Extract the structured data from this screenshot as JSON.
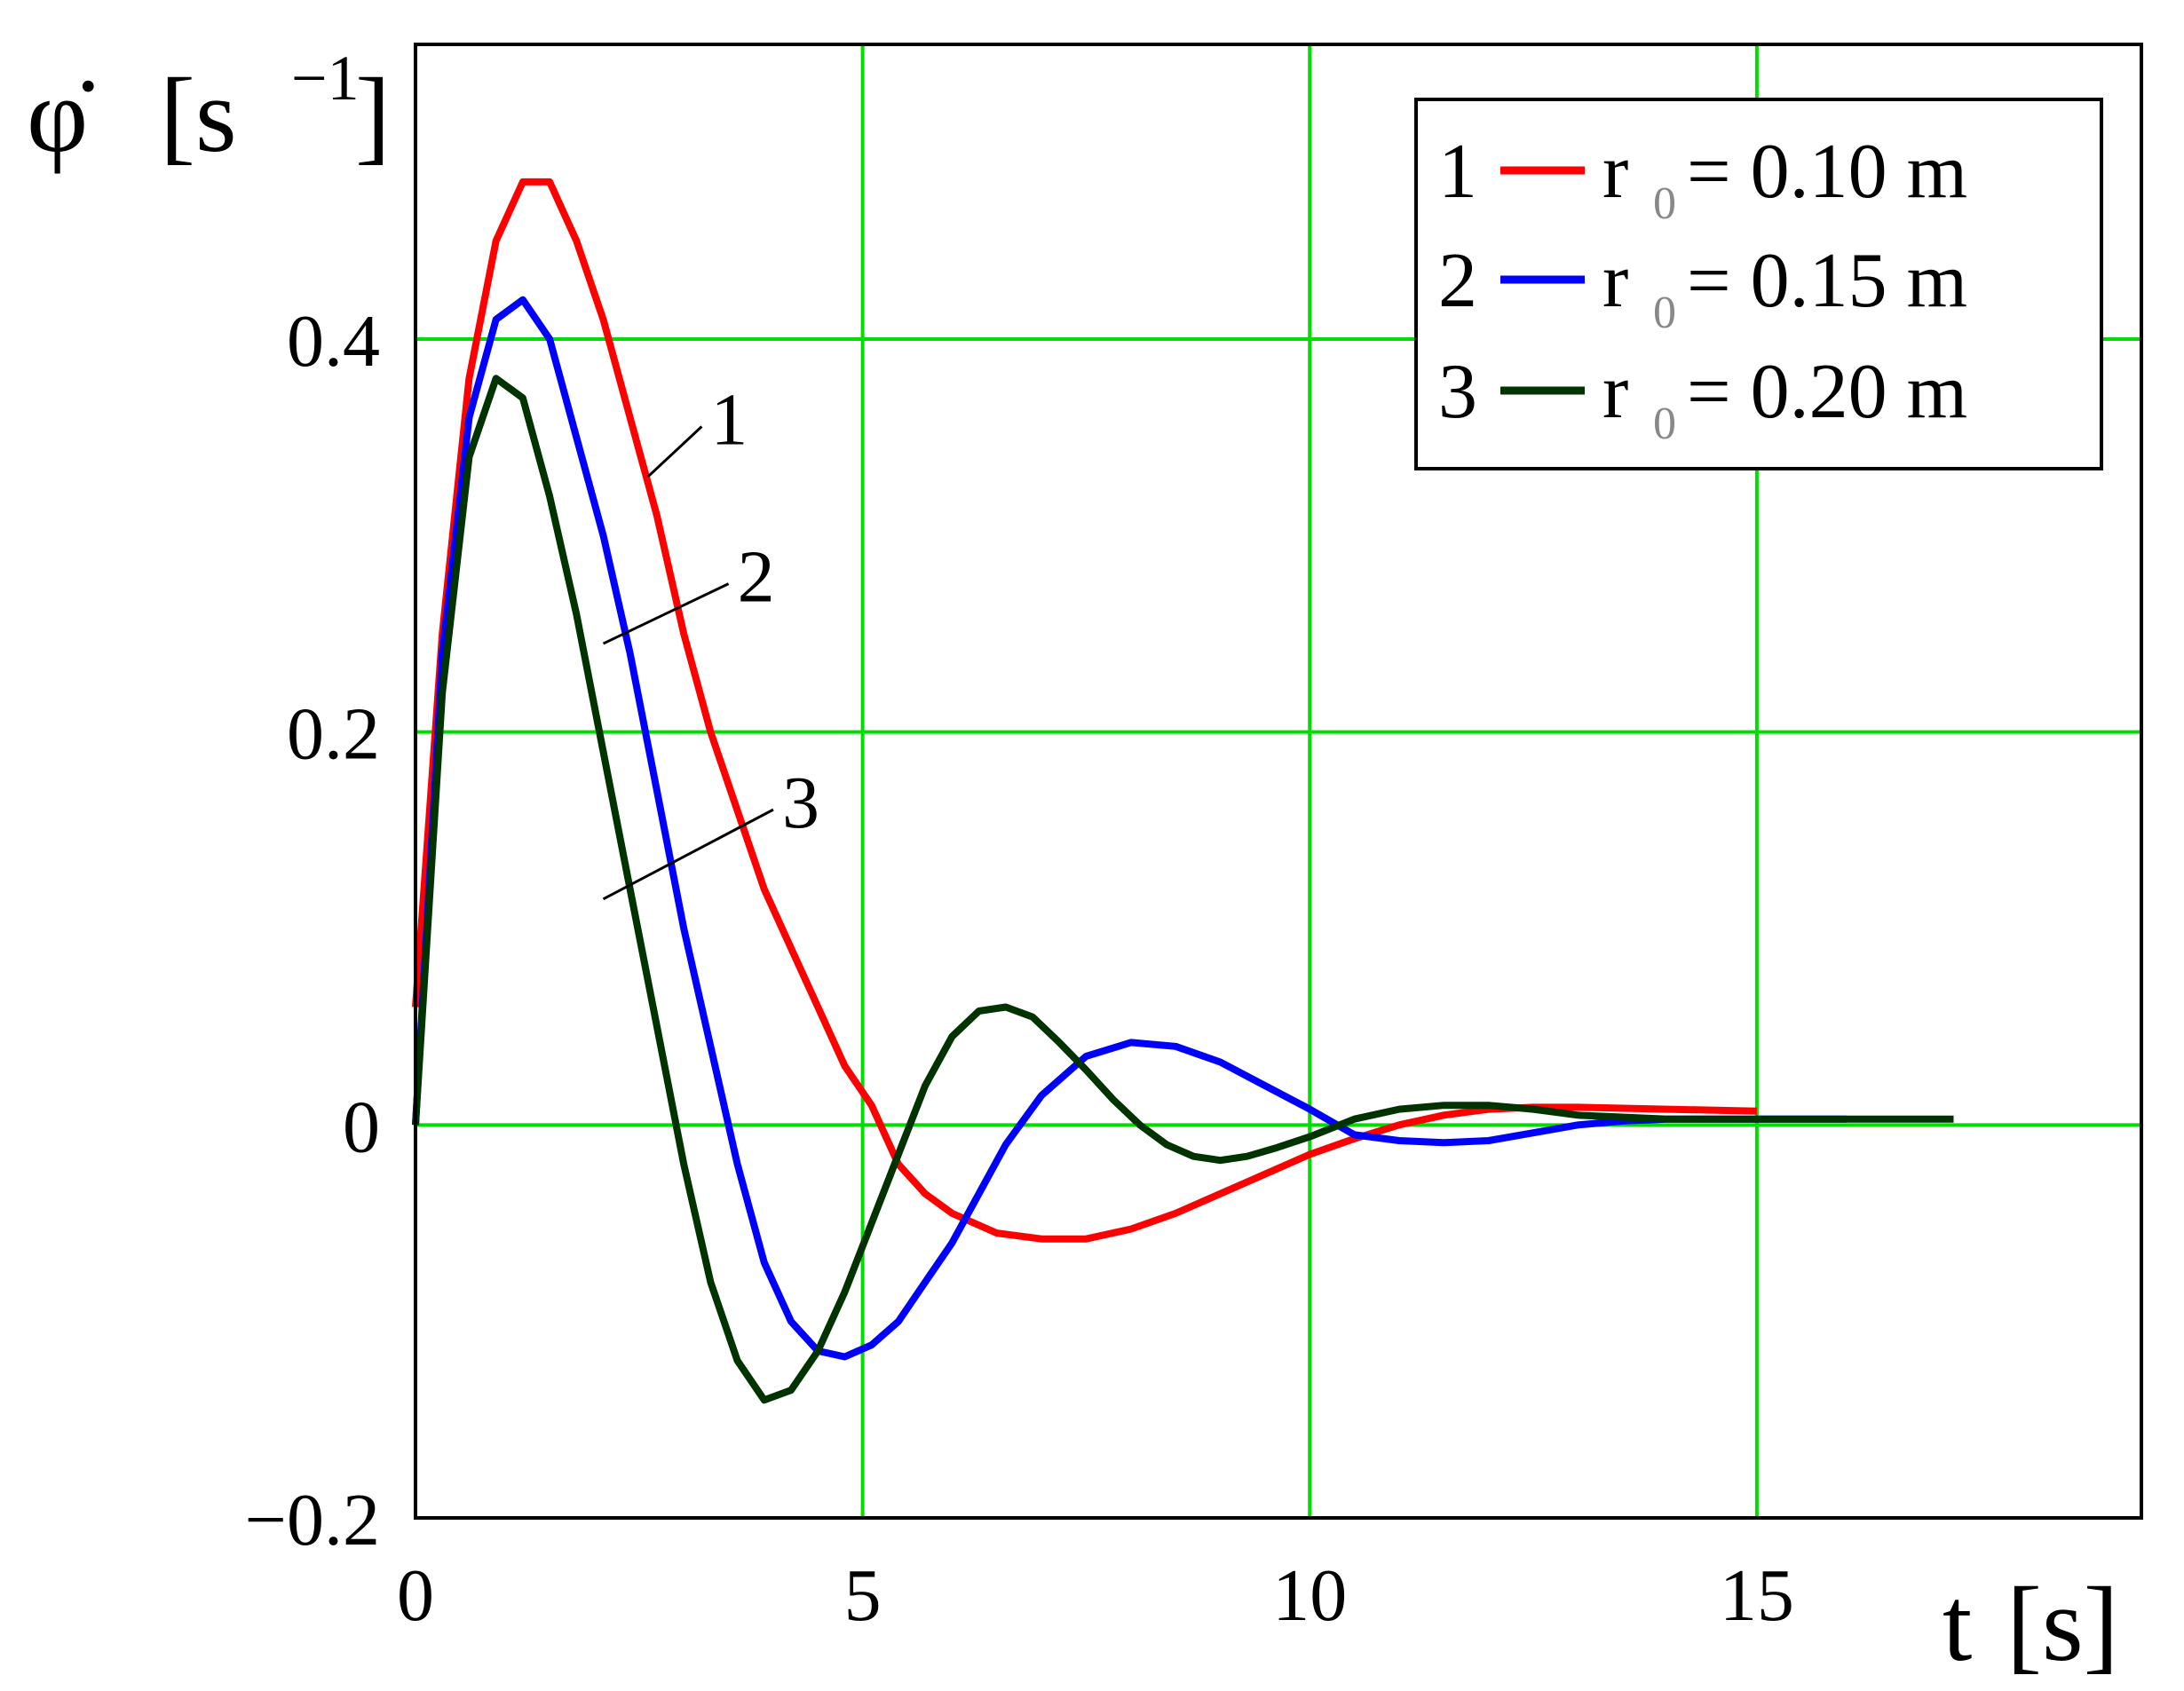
{
  "chart_data": {
    "type": "line",
    "ylabel": {
      "symbol": "φ̇",
      "unit_open": "[s",
      "unit_exp": "−1",
      "unit_close": "]"
    },
    "xlabel": {
      "symbol": "t",
      "unit": "[s]"
    },
    "xlim": [
      0,
      19.3
    ],
    "ylim": [
      -0.2,
      0.55
    ],
    "xticks": [
      {
        "value": 0,
        "label": "0"
      },
      {
        "value": 5,
        "label": "5"
      },
      {
        "value": 10,
        "label": "10"
      },
      {
        "value": 15,
        "label": "15"
      }
    ],
    "yticks": [
      {
        "value": -0.2,
        "label": "−0.2"
      },
      {
        "value": 0,
        "label": "0"
      },
      {
        "value": 0.2,
        "label": "0.2"
      },
      {
        "value": 0.4,
        "label": "0.4"
      }
    ],
    "grid": true,
    "grid_color": "#00dd00",
    "legend_position": "top-right",
    "series": [
      {
        "name": "r0 = 0.10 m",
        "id": "1",
        "color": "#ff0000",
        "legend": {
          "index": "1",
          "var": "r",
          "sub": "0",
          "value": "= 0.10 m"
        },
        "points": [
          [
            0,
            0.06
          ],
          [
            0.3,
            0.25
          ],
          [
            0.6,
            0.38
          ],
          [
            0.9,
            0.45
          ],
          [
            1.2,
            0.48
          ],
          [
            1.5,
            0.48
          ],
          [
            1.8,
            0.45
          ],
          [
            2.1,
            0.41
          ],
          [
            2.4,
            0.36
          ],
          [
            2.7,
            0.31
          ],
          [
            3.0,
            0.25
          ],
          [
            3.3,
            0.2
          ],
          [
            3.6,
            0.16
          ],
          [
            3.9,
            0.12
          ],
          [
            4.2,
            0.09
          ],
          [
            4.5,
            0.06
          ],
          [
            4.8,
            0.03
          ],
          [
            5.1,
            0.01
          ],
          [
            5.4,
            -0.02
          ],
          [
            5.7,
            -0.035
          ],
          [
            6.0,
            -0.045
          ],
          [
            6.5,
            -0.055
          ],
          [
            7.0,
            -0.058
          ],
          [
            7.5,
            -0.058
          ],
          [
            8.0,
            -0.053
          ],
          [
            8.5,
            -0.045
          ],
          [
            9.0,
            -0.035
          ],
          [
            9.5,
            -0.025
          ],
          [
            10.0,
            -0.015
          ],
          [
            10.5,
            -0.007
          ],
          [
            11.0,
            0.0
          ],
          [
            11.5,
            0.005
          ],
          [
            12.0,
            0.008
          ],
          [
            12.5,
            0.009
          ],
          [
            13.0,
            0.009
          ],
          [
            14.0,
            0.008
          ],
          [
            15.0,
            0.007
          ]
        ]
      },
      {
        "name": "r0 = 0.15 m",
        "id": "2",
        "color": "#0000ff",
        "legend": {
          "index": "2",
          "var": "r",
          "sub": "0",
          "value": "= 0.15 m"
        },
        "points": [
          [
            0,
            0.0
          ],
          [
            0.3,
            0.24
          ],
          [
            0.6,
            0.36
          ],
          [
            0.9,
            0.41
          ],
          [
            1.2,
            0.42
          ],
          [
            1.5,
            0.4
          ],
          [
            1.8,
            0.35
          ],
          [
            2.1,
            0.3
          ],
          [
            2.4,
            0.24
          ],
          [
            2.7,
            0.17
          ],
          [
            3.0,
            0.1
          ],
          [
            3.3,
            0.04
          ],
          [
            3.6,
            -0.02
          ],
          [
            3.9,
            -0.07
          ],
          [
            4.2,
            -0.1
          ],
          [
            4.5,
            -0.115
          ],
          [
            4.8,
            -0.118
          ],
          [
            5.1,
            -0.112
          ],
          [
            5.4,
            -0.1
          ],
          [
            5.7,
            -0.08
          ],
          [
            6.0,
            -0.06
          ],
          [
            6.3,
            -0.035
          ],
          [
            6.6,
            -0.01
          ],
          [
            7.0,
            0.015
          ],
          [
            7.5,
            0.035
          ],
          [
            8.0,
            0.042
          ],
          [
            8.5,
            0.04
          ],
          [
            9.0,
            0.032
          ],
          [
            9.5,
            0.02
          ],
          [
            10.0,
            0.008
          ],
          [
            10.5,
            -0.005
          ],
          [
            11.0,
            -0.008
          ],
          [
            11.5,
            -0.009
          ],
          [
            12.0,
            -0.008
          ],
          [
            12.5,
            -0.004
          ],
          [
            13.0,
            0.0
          ],
          [
            13.5,
            0.002
          ],
          [
            14.0,
            0.003
          ],
          [
            15.0,
            0.003
          ],
          [
            16.0,
            0.003
          ]
        ]
      },
      {
        "name": "r0 = 0.20 m",
        "id": "3",
        "color": "#003300",
        "legend": {
          "index": "3",
          "var": "r",
          "sub": "0",
          "value": "= 0.20 m"
        },
        "points": [
          [
            0,
            0.0
          ],
          [
            0.3,
            0.22
          ],
          [
            0.6,
            0.34
          ],
          [
            0.9,
            0.38
          ],
          [
            1.2,
            0.37
          ],
          [
            1.5,
            0.32
          ],
          [
            1.8,
            0.26
          ],
          [
            2.1,
            0.19
          ],
          [
            2.4,
            0.12
          ],
          [
            2.7,
            0.05
          ],
          [
            3.0,
            -0.02
          ],
          [
            3.3,
            -0.08
          ],
          [
            3.6,
            -0.12
          ],
          [
            3.9,
            -0.14
          ],
          [
            4.2,
            -0.135
          ],
          [
            4.5,
            -0.115
          ],
          [
            4.8,
            -0.085
          ],
          [
            5.1,
            -0.05
          ],
          [
            5.4,
            -0.015
          ],
          [
            5.7,
            0.02
          ],
          [
            6.0,
            0.045
          ],
          [
            6.3,
            0.058
          ],
          [
            6.6,
            0.06
          ],
          [
            6.9,
            0.055
          ],
          [
            7.2,
            0.042
          ],
          [
            7.5,
            0.028
          ],
          [
            7.8,
            0.013
          ],
          [
            8.1,
            0.0
          ],
          [
            8.4,
            -0.01
          ],
          [
            8.7,
            -0.016
          ],
          [
            9.0,
            -0.018
          ],
          [
            9.3,
            -0.016
          ],
          [
            9.6,
            -0.012
          ],
          [
            10.0,
            -0.006
          ],
          [
            10.5,
            0.003
          ],
          [
            11.0,
            0.008
          ],
          [
            11.5,
            0.01
          ],
          [
            12.0,
            0.01
          ],
          [
            12.5,
            0.008
          ],
          [
            13.0,
            0.005
          ],
          [
            14.0,
            0.003
          ],
          [
            15.0,
            0.003
          ],
          [
            16.0,
            0.003
          ],
          [
            17.2,
            0.003
          ]
        ]
      }
    ],
    "annotations": [
      {
        "text": "1",
        "series": "1"
      },
      {
        "text": "2",
        "series": "2"
      },
      {
        "text": "3",
        "series": "3"
      }
    ]
  }
}
